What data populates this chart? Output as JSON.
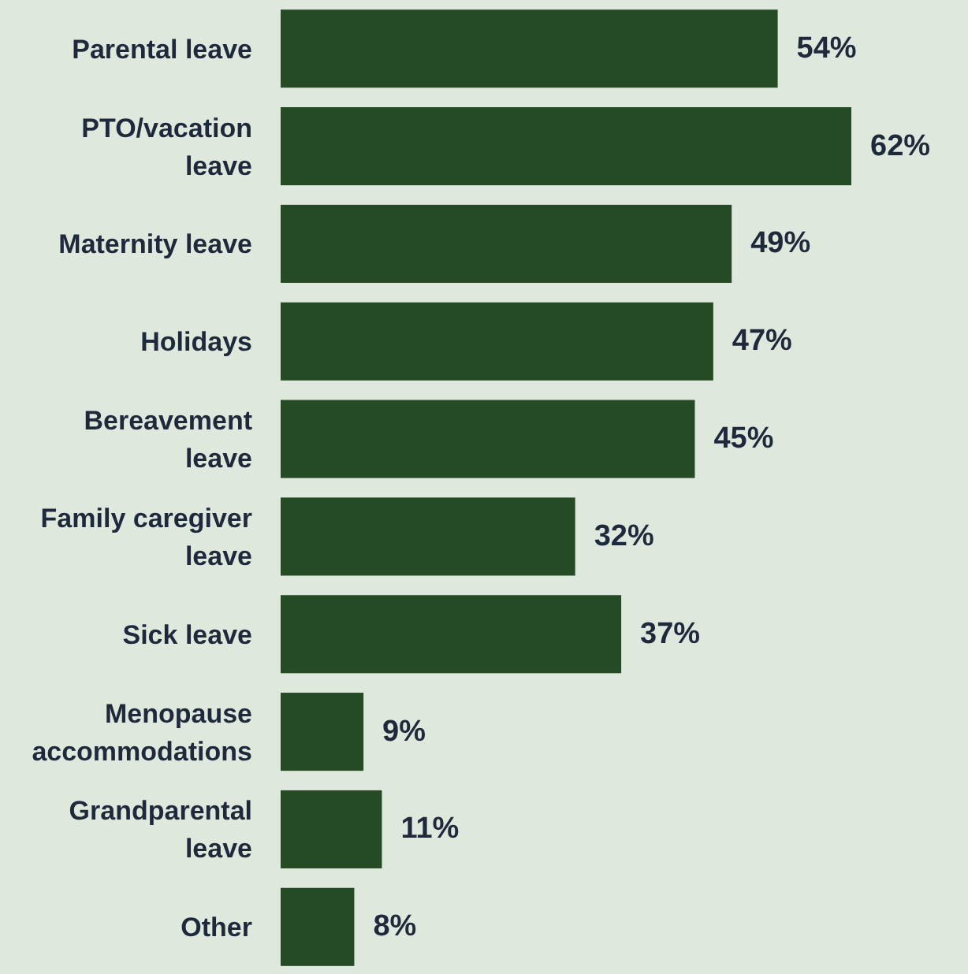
{
  "chart_data": {
    "type": "bar",
    "orientation": "horizontal",
    "data_labels": true,
    "color": "#254b24",
    "categories": [
      "Parental leave",
      "PTO/vacation leave",
      "Maternity leave",
      "Holidays",
      "Bereavement leave",
      "Family caregiver leave",
      "Sick leave",
      "Menopause accommodations",
      "Grandparental leave",
      "Other"
    ],
    "values": [
      54,
      62,
      49,
      47,
      45,
      32,
      37,
      9,
      11,
      8
    ],
    "value_labels": [
      "54%",
      "62%",
      "49%",
      "47%",
      "45%",
      "32%",
      "37%",
      "9%",
      "11%",
      "8%"
    ]
  }
}
